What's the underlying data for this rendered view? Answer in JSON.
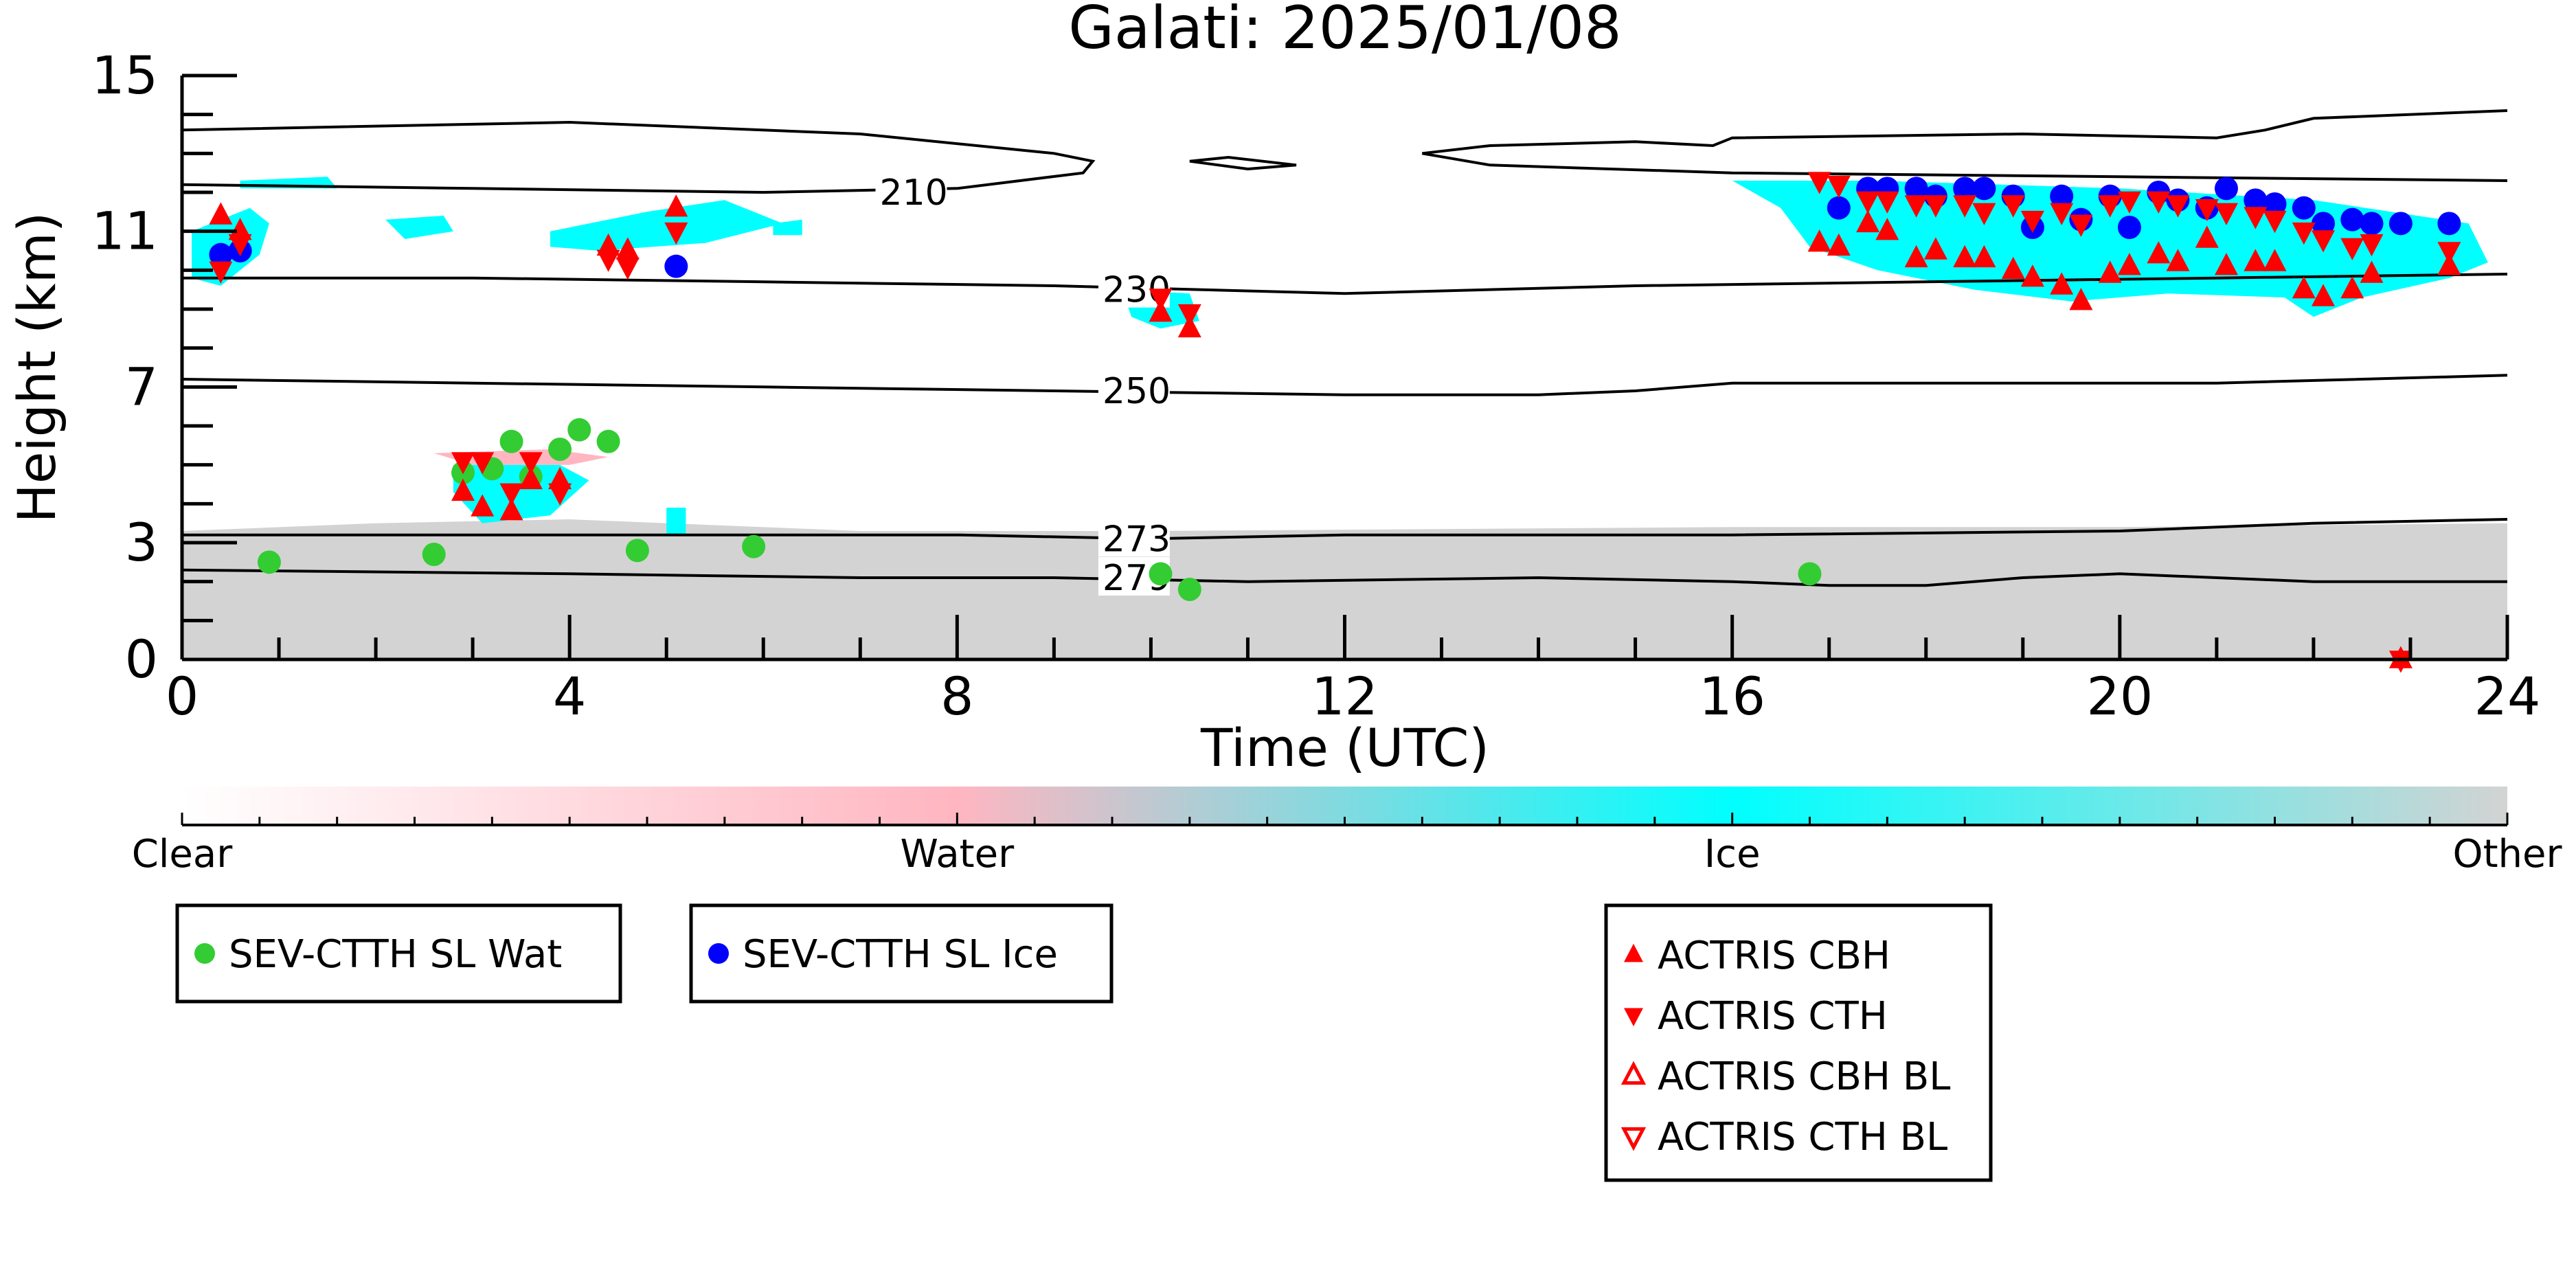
{
  "chart_data": {
    "type": "scatter",
    "title": "Galati: 2025/01/08",
    "xlabel": "Time (UTC)",
    "ylabel": "Height (km)",
    "xlim": [
      0,
      24
    ],
    "ylim": [
      0,
      15
    ],
    "x_ticks": [
      "0",
      "4",
      "8",
      "12",
      "16",
      "20",
      "24"
    ],
    "x_tick_values": [
      0,
      4,
      8,
      12,
      16,
      20,
      24
    ],
    "y_ticks": [
      "0",
      "3",
      "7",
      "11",
      "15"
    ],
    "y_tick_values": [
      0,
      3,
      7,
      11,
      15
    ],
    "colors": {
      "water_phase": "#ffb6c1",
      "ice_phase": "#00ffff",
      "other_phase": "#d3d3d3",
      "sev_wat": "#33cc33",
      "sev_ice": "#0000ff",
      "actris": "#ff0000"
    },
    "colorbar": {
      "labels": [
        "Clear",
        "Water",
        "Ice",
        "Other"
      ],
      "values": [
        0,
        1,
        2,
        3
      ]
    },
    "isotherms": [
      {
        "label": "210",
        "label_x": 7.2,
        "label_y": 12.0,
        "segments": [
          [
            [
              0,
              13.6
            ],
            [
              4,
              13.8
            ],
            [
              7,
              13.5
            ],
            [
              9,
              13.0
            ],
            [
              9.4,
              12.8
            ],
            [
              9.3,
              12.5
            ],
            [
              8,
              12.1
            ],
            [
              6,
              12.0
            ],
            [
              3,
              12.1
            ],
            [
              0,
              12.2
            ]
          ],
          [
            [
              10.4,
              12.8
            ],
            [
              10.8,
              12.9
            ],
            [
              11.5,
              12.7
            ],
            [
              11.0,
              12.6
            ],
            [
              10.4,
              12.8
            ]
          ],
          [
            [
              12.8,
              13.0
            ],
            [
              13.5,
              13.2
            ],
            [
              15,
              13.3
            ],
            [
              15.8,
              13.2
            ],
            [
              16,
              13.4
            ],
            [
              19,
              13.5
            ],
            [
              21,
              13.4
            ],
            [
              21.5,
              13.6
            ],
            [
              22,
              13.9
            ],
            [
              24,
              14.1
            ]
          ],
          [
            [
              12.8,
              13.0
            ],
            [
              13.5,
              12.7
            ],
            [
              16,
              12.5
            ],
            [
              20,
              12.4
            ],
            [
              24,
              12.3
            ]
          ]
        ]
      },
      {
        "label": "230",
        "label_x": 9.5,
        "label_y": 9.5,
        "segments": [
          [
            [
              0,
              9.8
            ],
            [
              3,
              9.8
            ],
            [
              6,
              9.7
            ],
            [
              9,
              9.6
            ],
            [
              12,
              9.4
            ],
            [
              15,
              9.6
            ],
            [
              18,
              9.7
            ],
            [
              21,
              9.8
            ],
            [
              24,
              9.9
            ]
          ]
        ]
      },
      {
        "label": "250",
        "label_x": 9.5,
        "label_y": 6.9,
        "segments": [
          [
            [
              0,
              7.2
            ],
            [
              3,
              7.1
            ],
            [
              6,
              7.0
            ],
            [
              9,
              6.9
            ],
            [
              12,
              6.8
            ],
            [
              14,
              6.8
            ],
            [
              15,
              6.9
            ],
            [
              16,
              7.1
            ],
            [
              18,
              7.1
            ],
            [
              21,
              7.1
            ],
            [
              24,
              7.3
            ]
          ]
        ]
      },
      {
        "label": "273",
        "label_x": 9.5,
        "label_y": 3.1,
        "segments": [
          [
            [
              0,
              3.2
            ],
            [
              4,
              3.2
            ],
            [
              8,
              3.2
            ],
            [
              10,
              3.1
            ],
            [
              12,
              3.2
            ],
            [
              16,
              3.2
            ],
            [
              20,
              3.3
            ],
            [
              22,
              3.5
            ],
            [
              24,
              3.6
            ]
          ]
        ]
      },
      {
        "label": "279",
        "label_x": 9.5,
        "label_y": 2.1,
        "segments": [
          [
            [
              0,
              2.3
            ],
            [
              4,
              2.2
            ],
            [
              7,
              2.1
            ],
            [
              9,
              2.1
            ],
            [
              11,
              2.0
            ],
            [
              14,
              2.1
            ],
            [
              16,
              2.0
            ],
            [
              17,
              1.9
            ],
            [
              18,
              1.9
            ],
            [
              19,
              2.1
            ],
            [
              20,
              2.2
            ],
            [
              22,
              2.0
            ],
            [
              24,
              2.0
            ]
          ]
        ]
      }
    ],
    "phase_regions": [
      {
        "phase": "other",
        "points": [
          [
            0,
            0
          ],
          [
            0,
            3.3
          ],
          [
            2,
            3.5
          ],
          [
            4,
            3.6
          ],
          [
            7,
            3.3
          ],
          [
            10,
            3.3
          ],
          [
            16,
            3.4
          ],
          [
            20,
            3.4
          ],
          [
            24,
            3.5
          ],
          [
            24,
            0
          ]
        ]
      },
      {
        "phase": "water",
        "points": [
          [
            2.6,
            5.3
          ],
          [
            3.8,
            5.4
          ],
          [
            4.4,
            5.2
          ],
          [
            4.0,
            5.0
          ],
          [
            3.0,
            5.0
          ]
        ]
      },
      {
        "phase": "ice",
        "points": [
          [
            2.8,
            5.0
          ],
          [
            3.9,
            5.0
          ],
          [
            4.2,
            4.6
          ],
          [
            3.8,
            3.7
          ],
          [
            3.1,
            3.5
          ],
          [
            2.8,
            4.3
          ]
        ]
      },
      {
        "phase": "ice",
        "points": [
          [
            5.0,
            3.9
          ],
          [
            5.2,
            3.9
          ],
          [
            5.2,
            3.2
          ],
          [
            5.0,
            3.2
          ]
        ]
      },
      {
        "phase": "ice",
        "points": [
          [
            0.1,
            11.0
          ],
          [
            0.7,
            11.6
          ],
          [
            0.9,
            11.2
          ],
          [
            0.8,
            10.4
          ],
          [
            0.4,
            9.6
          ],
          [
            0.1,
            9.8
          ]
        ]
      },
      {
        "phase": "ice",
        "points": [
          [
            0.6,
            12.3
          ],
          [
            1.5,
            12.4
          ],
          [
            1.6,
            12.1
          ],
          [
            0.6,
            12.1
          ]
        ]
      },
      {
        "phase": "ice",
        "points": [
          [
            2.1,
            11.3
          ],
          [
            2.7,
            11.4
          ],
          [
            2.8,
            11.0
          ],
          [
            2.3,
            10.8
          ]
        ]
      },
      {
        "phase": "ice",
        "points": [
          [
            3.8,
            11.0
          ],
          [
            4.8,
            11.5
          ],
          [
            5.6,
            11.8
          ],
          [
            6.2,
            11.2
          ],
          [
            5.4,
            10.7
          ],
          [
            4.3,
            10.5
          ],
          [
            3.8,
            10.6
          ]
        ]
      },
      {
        "phase": "ice",
        "points": [
          [
            6.1,
            11.2
          ],
          [
            6.4,
            11.3
          ],
          [
            6.4,
            10.9
          ],
          [
            6.1,
            10.9
          ]
        ]
      },
      {
        "phase": "ice",
        "points": [
          [
            9.7,
            9.5
          ],
          [
            10.4,
            9.4
          ],
          [
            10.5,
            8.7
          ],
          [
            10.1,
            8.5
          ],
          [
            9.8,
            8.8
          ]
        ]
      },
      {
        "phase": "ice",
        "points": [
          [
            16.0,
            12.3
          ],
          [
            17.5,
            12.3
          ],
          [
            20.0,
            12.1
          ],
          [
            22.0,
            11.8
          ],
          [
            23.6,
            11.2
          ],
          [
            23.8,
            10.2
          ],
          [
            23.4,
            9.8
          ],
          [
            22.5,
            9.3
          ],
          [
            22.0,
            8.8
          ],
          [
            21.7,
            9.3
          ],
          [
            20.5,
            9.4
          ],
          [
            19.5,
            9.2
          ],
          [
            18.5,
            9.5
          ],
          [
            17.5,
            10.0
          ],
          [
            16.8,
            10.6
          ],
          [
            16.5,
            11.6
          ]
        ]
      }
    ],
    "series": [
      {
        "name": "SEV-CTTH SL Wat",
        "marker": "circle",
        "color": "#33cc33",
        "x": [
          0.9,
          2.6,
          2.9,
          3.2,
          3.4,
          3.6,
          3.9,
          4.1,
          4.4,
          4.7,
          5.9,
          10.1,
          10.4,
          16.8
        ],
        "y": [
          2.5,
          2.7,
          4.8,
          4.9,
          5.6,
          4.7,
          5.4,
          5.9,
          5.6,
          2.8,
          2.9,
          2.2,
          1.8,
          2.2
        ]
      },
      {
        "name": "SEV-CTTH SL Ice",
        "marker": "circle",
        "color": "#0000ff",
        "x": [
          0.4,
          0.6,
          5.1,
          17.1,
          17.4,
          17.6,
          17.9,
          18.1,
          18.4,
          18.6,
          18.9,
          19.1,
          19.4,
          19.6,
          19.9,
          20.1,
          20.4,
          20.6,
          20.9,
          21.1,
          21.4,
          21.6,
          21.9,
          22.1,
          22.4,
          22.6,
          22.9,
          23.4
        ],
        "y": [
          10.4,
          10.5,
          10.1,
          11.6,
          12.1,
          12.1,
          12.1,
          11.9,
          12.1,
          12.1,
          11.9,
          11.1,
          11.9,
          11.3,
          11.9,
          11.1,
          12.0,
          11.8,
          11.6,
          12.1,
          11.8,
          11.7,
          11.6,
          11.2,
          11.3,
          11.2,
          11.2,
          11.2
        ]
      },
      {
        "name": "ACTRIS CBH",
        "marker": "triangle-up",
        "color": "#ff0000",
        "x": [
          0.4,
          0.6,
          2.9,
          3.1,
          3.4,
          3.6,
          3.9,
          4.4,
          4.6,
          5.1,
          10.1,
          10.4,
          16.9,
          17.1,
          17.4,
          17.6,
          17.9,
          18.1,
          18.4,
          18.6,
          18.9,
          19.1,
          19.4,
          19.6,
          19.9,
          20.1,
          20.4,
          20.6,
          20.9,
          21.1,
          21.4,
          21.6,
          21.9,
          22.1,
          22.4,
          22.6,
          23.4,
          22.9
        ],
        "y": [
          11.4,
          11.0,
          4.3,
          3.9,
          3.8,
          4.6,
          4.6,
          10.6,
          10.5,
          11.6,
          8.9,
          8.5,
          10.7,
          10.6,
          11.2,
          11.0,
          10.3,
          10.5,
          10.3,
          10.3,
          10.0,
          9.8,
          9.6,
          9.2,
          9.9,
          10.1,
          10.4,
          10.2,
          10.8,
          10.1,
          10.2,
          10.2,
          9.5,
          9.3,
          9.5,
          9.9,
          10.1,
          0.0
        ]
      },
      {
        "name": "ACTRIS CTH",
        "marker": "triangle-down",
        "color": "#ff0000",
        "x": [
          0.4,
          0.6,
          2.9,
          3.1,
          3.4,
          3.6,
          3.9,
          4.4,
          4.6,
          5.1,
          10.1,
          10.4,
          16.9,
          17.1,
          17.4,
          17.6,
          17.9,
          18.1,
          18.4,
          18.6,
          18.9,
          19.1,
          19.4,
          19.6,
          19.9,
          20.1,
          20.4,
          20.6,
          20.9,
          21.1,
          21.4,
          21.6,
          21.9,
          22.1,
          22.4,
          22.6,
          23.4,
          22.9
        ],
        "y": [
          10.0,
          10.7,
          5.1,
          5.1,
          4.3,
          5.1,
          4.3,
          10.3,
          10.1,
          11.0,
          9.3,
          8.9,
          12.3,
          12.2,
          11.8,
          11.8,
          11.7,
          11.7,
          11.7,
          11.5,
          11.7,
          11.3,
          11.5,
          11.2,
          11.7,
          11.8,
          11.8,
          11.7,
          11.6,
          11.5,
          11.4,
          11.3,
          11.0,
          10.8,
          10.6,
          10.7,
          10.5,
          0.0
        ]
      },
      {
        "name": "ACTRIS CBH BL",
        "marker": "triangle-up-open",
        "color": "#ff0000",
        "x": [],
        "y": []
      },
      {
        "name": "ACTRIS CTH BL",
        "marker": "triangle-down-open",
        "color": "#ff0000",
        "x": [],
        "y": []
      }
    ],
    "legends": [
      {
        "position": "bottom-left",
        "entries": [
          "SEV-CTTH SL Wat"
        ]
      },
      {
        "position": "bottom-left",
        "entries": [
          "SEV-CTTH SL Ice"
        ]
      },
      {
        "position": "bottom-center",
        "entries": [
          "ACTRIS CBH",
          "ACTRIS CTH",
          "ACTRIS CBH BL",
          "ACTRIS CTH BL"
        ]
      }
    ]
  }
}
